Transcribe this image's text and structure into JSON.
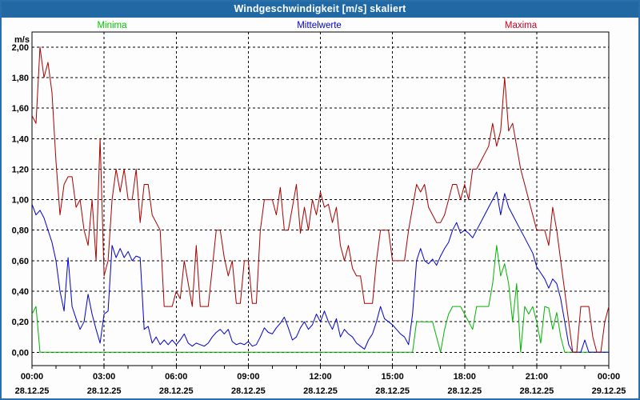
{
  "window": {
    "title": "Windgeschwindigkeit [m/s] skaliert"
  },
  "legend": {
    "minima": "Minima",
    "mittelwerte": "Mittelwerte",
    "maxima": "Maxima"
  },
  "colors": {
    "titlebar_bg": "#2169a5",
    "page_border": "#2a6fa8",
    "minima": "#00b400",
    "mittelwerte": "#0000cc",
    "maxima": "#a80000",
    "legend_minima": "#00c400",
    "legend_mittelwerte": "#0000d0",
    "legend_maxima": "#cc0022",
    "grid": "#000000"
  },
  "chart_data": {
    "type": "line",
    "title": "Windgeschwindigkeit [m/s] skaliert",
    "ylabel": "m/s",
    "ylim": [
      0,
      2.0
    ],
    "y_tick_step": 0.2,
    "y_tick_labels": [
      "0,00",
      "0,20",
      "0,40",
      "0,60",
      "0,80",
      "1,00",
      "1,20",
      "1,40",
      "1,60",
      "1,80",
      "2,00"
    ],
    "x_range_minutes": 1440,
    "x_label_step_minutes": 180,
    "x_minor_tick_minutes": 60,
    "x_tick_labels": [
      {
        "time": "00:00",
        "date": "28.12.25"
      },
      {
        "time": "03:00",
        "date": "28.12.25"
      },
      {
        "time": "06:00",
        "date": "28.12.25"
      },
      {
        "time": "09:00",
        "date": "28.12.25"
      },
      {
        "time": "12:00",
        "date": "28.12.25"
      },
      {
        "time": "15:00",
        "date": "28.12.25"
      },
      {
        "time": "18:00",
        "date": "28.12.25"
      },
      {
        "time": "21:00",
        "date": "28.12.25"
      },
      {
        "time": "00:00",
        "date": "29.12.25"
      }
    ],
    "grid": "dashed",
    "x_minutes_per_point": 10,
    "series": [
      {
        "name": "Minima",
        "color_key": "minima",
        "values": [
          0.25,
          0.3,
          0.0,
          0.0,
          0.0,
          0.0,
          0.0,
          0.0,
          0.0,
          0.0,
          0.0,
          0.0,
          0.0,
          0.0,
          0.0,
          0.0,
          0.0,
          0.0,
          0.0,
          0.0,
          0.0,
          0.0,
          0.0,
          0.0,
          0.0,
          0.0,
          0.0,
          0.0,
          0.0,
          0.0,
          0.0,
          0.0,
          0.0,
          0.0,
          0.0,
          0.0,
          0.0,
          0.0,
          0.0,
          0.0,
          0.0,
          0.0,
          0.0,
          0.0,
          0.0,
          0.0,
          0.0,
          0.0,
          0.0,
          0.0,
          0.0,
          0.0,
          0.0,
          0.0,
          0.0,
          0.0,
          0.0,
          0.0,
          0.0,
          0.0,
          0.0,
          0.0,
          0.0,
          0.0,
          0.0,
          0.0,
          0.0,
          0.0,
          0.0,
          0.0,
          0.0,
          0.0,
          0.0,
          0.0,
          0.0,
          0.0,
          0.0,
          0.0,
          0.0,
          0.0,
          0.0,
          0.0,
          0.0,
          0.0,
          0.0,
          0.0,
          0.0,
          0.0,
          0.0,
          0.0,
          0.0,
          0.0,
          0.0,
          0.0,
          0.0,
          0.0,
          0.2,
          0.2,
          0.2,
          0.2,
          0.2,
          0.1,
          0.0,
          0.15,
          0.25,
          0.3,
          0.3,
          0.3,
          0.25,
          0.2,
          0.15,
          0.3,
          0.3,
          0.3,
          0.3,
          0.45,
          0.7,
          0.5,
          0.58,
          0.45,
          0.2,
          0.45,
          0.0,
          0.3,
          0.25,
          0.3,
          0.2,
          0.06,
          0.3,
          0.29,
          0.15,
          0.26,
          0.1,
          0.0,
          0.0,
          0.0,
          0.0,
          0.0,
          0.0,
          0.0,
          0.0,
          0.0,
          0.0,
          0.0,
          0.0
        ]
      },
      {
        "name": "Mittelwerte",
        "color_key": "mittelwerte",
        "values": [
          0.97,
          0.9,
          0.93,
          0.88,
          0.8,
          0.72,
          0.6,
          0.4,
          0.27,
          0.62,
          0.3,
          0.22,
          0.15,
          0.2,
          0.38,
          0.25,
          0.15,
          0.06,
          0.25,
          0.27,
          0.7,
          0.62,
          0.68,
          0.62,
          0.66,
          0.6,
          0.63,
          0.62,
          0.15,
          0.17,
          0.06,
          0.1,
          0.05,
          0.08,
          0.05,
          0.08,
          0.05,
          0.08,
          0.12,
          0.06,
          0.04,
          0.06,
          0.05,
          0.04,
          0.06,
          0.1,
          0.13,
          0.15,
          0.12,
          0.15,
          0.07,
          0.05,
          0.06,
          0.05,
          0.07,
          0.04,
          0.05,
          0.1,
          0.16,
          0.13,
          0.12,
          0.16,
          0.19,
          0.23,
          0.16,
          0.08,
          0.1,
          0.16,
          0.2,
          0.15,
          0.18,
          0.25,
          0.2,
          0.27,
          0.2,
          0.15,
          0.22,
          0.1,
          0.15,
          0.12,
          0.1,
          0.06,
          0.04,
          0.02,
          0.08,
          0.12,
          0.2,
          0.3,
          0.22,
          0.2,
          0.18,
          0.15,
          0.12,
          0.1,
          0.05,
          0.25,
          0.6,
          0.68,
          0.6,
          0.58,
          0.61,
          0.57,
          0.63,
          0.68,
          0.72,
          0.8,
          0.85,
          0.78,
          0.8,
          0.78,
          0.75,
          0.8,
          0.85,
          0.9,
          0.95,
          1.0,
          1.05,
          0.9,
          1.04,
          0.95,
          0.9,
          0.85,
          0.8,
          0.75,
          0.7,
          0.65,
          0.56,
          0.52,
          0.48,
          0.42,
          0.48,
          0.45,
          0.35,
          0.2,
          0.05,
          0.0,
          0.0,
          0.0,
          0.08,
          0.0,
          0.0,
          0.0,
          0.0,
          0.0,
          0.0
        ]
      },
      {
        "name": "Maxima",
        "color_key": "maxima",
        "values": [
          1.55,
          1.5,
          2.0,
          1.8,
          1.9,
          1.7,
          1.25,
          0.9,
          1.1,
          1.15,
          1.15,
          0.95,
          1.0,
          0.8,
          0.7,
          1.0,
          0.6,
          1.4,
          0.5,
          0.6,
          1.0,
          1.2,
          1.05,
          1.2,
          1.0,
          1.0,
          1.2,
          0.85,
          1.1,
          1.1,
          0.9,
          0.85,
          0.8,
          0.3,
          0.3,
          0.3,
          0.4,
          0.35,
          0.6,
          0.45,
          0.3,
          0.7,
          0.3,
          0.3,
          0.3,
          0.55,
          0.8,
          0.8,
          0.62,
          0.5,
          0.6,
          0.32,
          0.32,
          0.6,
          0.6,
          0.32,
          0.32,
          0.8,
          1.0,
          1.0,
          1.0,
          0.9,
          1.08,
          0.8,
          0.8,
          0.95,
          1.1,
          0.78,
          0.95,
          0.8,
          1.0,
          0.9,
          1.05,
          0.95,
          0.97,
          0.85,
          0.95,
          0.7,
          0.6,
          0.7,
          0.55,
          0.5,
          0.5,
          0.32,
          0.32,
          0.32,
          0.6,
          0.8,
          0.8,
          0.8,
          0.6,
          0.6,
          0.6,
          0.6,
          0.8,
          0.95,
          1.1,
          1.05,
          1.1,
          0.95,
          0.9,
          0.85,
          0.85,
          0.9,
          1.0,
          1.1,
          1.1,
          1.0,
          1.1,
          1.0,
          1.2,
          1.2,
          1.25,
          1.3,
          1.35,
          1.5,
          1.35,
          1.45,
          1.8,
          1.45,
          1.5,
          1.35,
          1.2,
          1.1,
          1.0,
          0.9,
          0.8,
          0.8,
          0.8,
          0.7,
          0.95,
          0.8,
          0.6,
          0.4,
          0.2,
          0.0,
          0.0,
          0.3,
          0.3,
          0.3,
          0.1,
          0.0,
          0.0,
          0.2,
          0.3
        ]
      }
    ]
  }
}
